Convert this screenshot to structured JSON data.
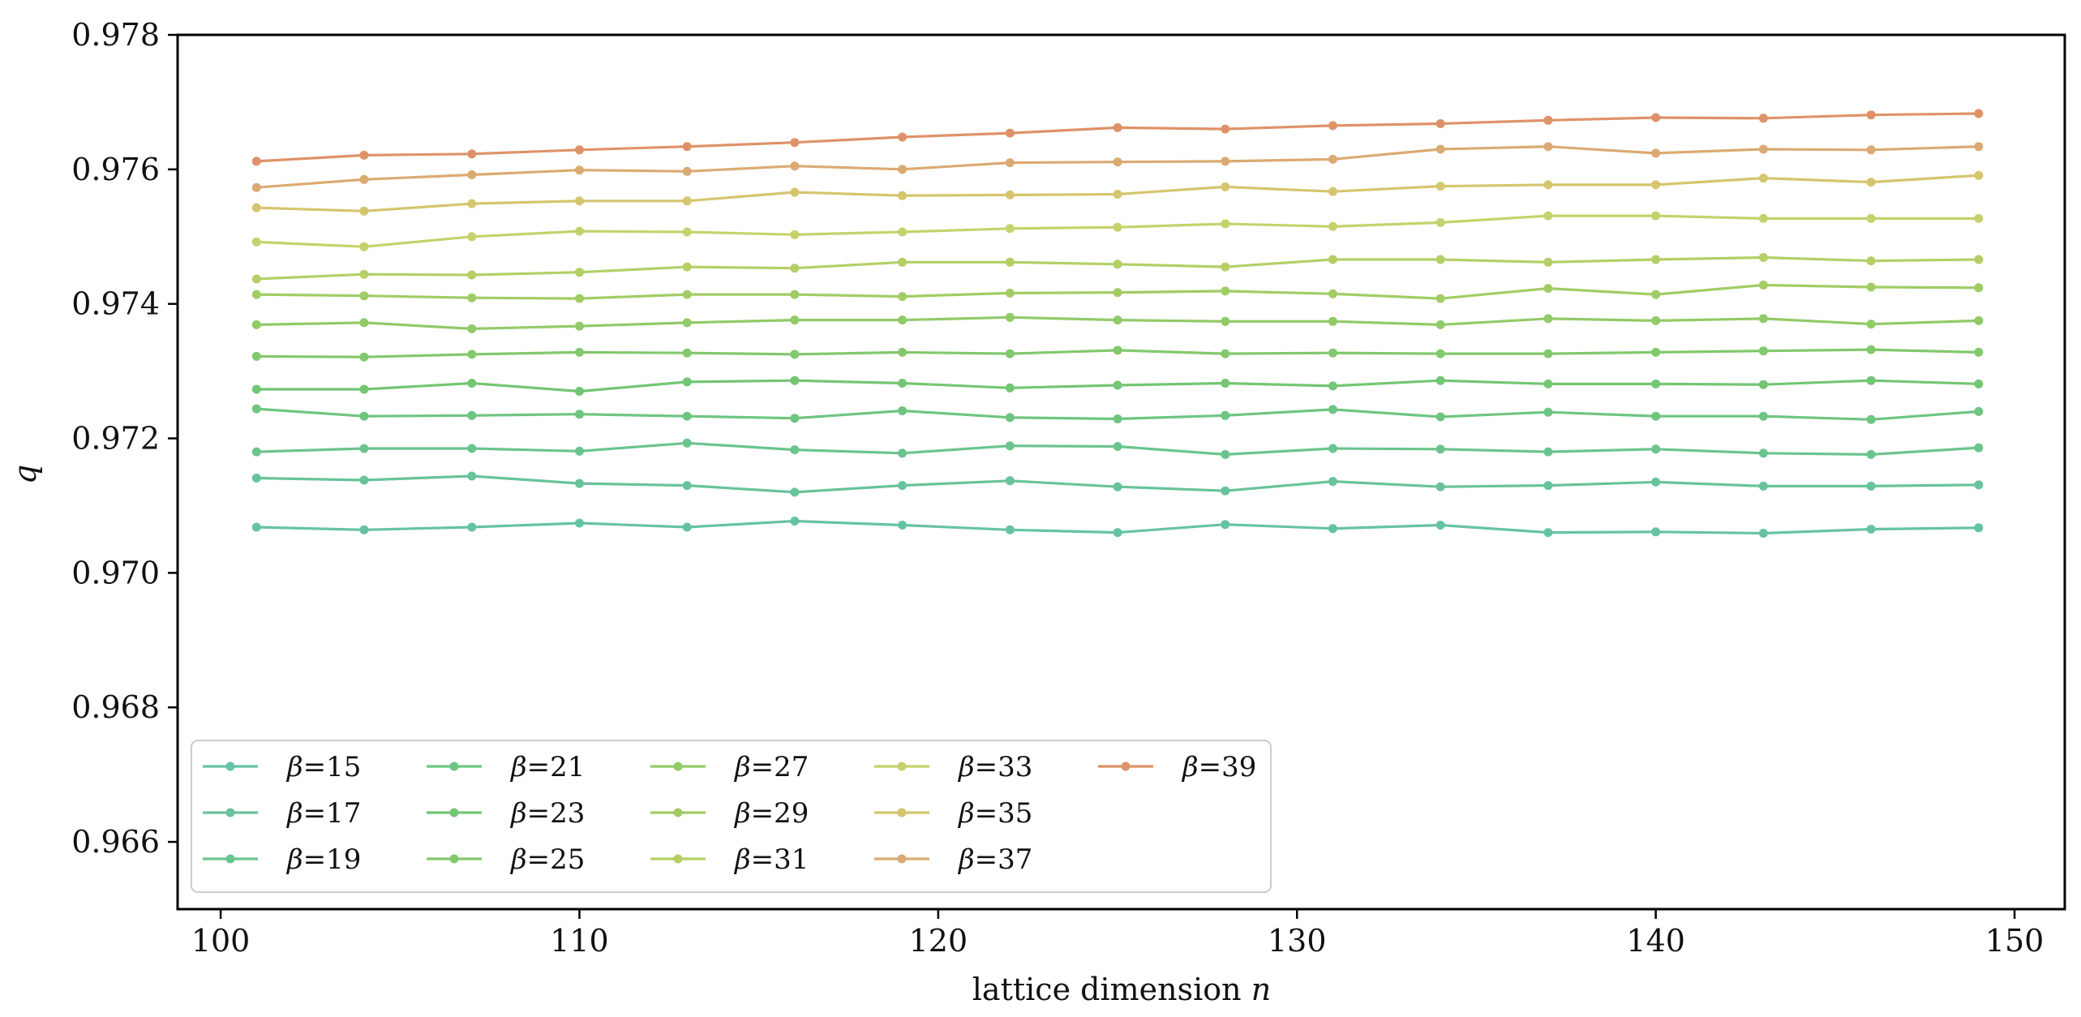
{
  "chart_data": {
    "type": "line",
    "title": "",
    "xlabel": "lattice dimension",
    "xlabel_var": "n",
    "ylabel": "q",
    "xlim": [
      98.8,
      151.4
    ],
    "ylim": [
      0.965,
      0.978
    ],
    "xticks": [
      100,
      110,
      120,
      130,
      140,
      150
    ],
    "xtick_labels": [
      "100",
      "110",
      "120",
      "130",
      "140",
      "150"
    ],
    "yticks": [
      0.966,
      0.968,
      0.97,
      0.972,
      0.974,
      0.976,
      0.978
    ],
    "ytick_labels": [
      "0.966",
      "0.968",
      "0.970",
      "0.972",
      "0.974",
      "0.976",
      "0.978"
    ],
    "grid": false,
    "legend_position": "lower-left",
    "legend_columns": 5,
    "x": [
      101,
      104,
      107,
      110,
      113,
      116,
      119,
      122,
      125,
      128,
      131,
      134,
      137,
      140,
      143,
      146,
      149
    ],
    "series": [
      {
        "name": "β=15",
        "symbol": "β",
        "value": "=15",
        "color": "#66c2a5",
        "values": [
          0.97068,
          0.97064,
          0.97068,
          0.97074,
          0.97068,
          0.97077,
          0.97071,
          0.97064,
          0.9706,
          0.97072,
          0.97066,
          0.97071,
          0.9706,
          0.97061,
          0.97059,
          0.97065,
          0.97067
        ]
      },
      {
        "name": "β=17",
        "symbol": "β",
        "value": "=17",
        "color": "#68c39a",
        "values": [
          0.97141,
          0.97138,
          0.97144,
          0.97133,
          0.9713,
          0.9712,
          0.9713,
          0.97137,
          0.97128,
          0.97122,
          0.97136,
          0.97128,
          0.9713,
          0.97135,
          0.97129,
          0.97129,
          0.97131
        ]
      },
      {
        "name": "β=19",
        "symbol": "β",
        "value": "=19",
        "color": "#6bc48e",
        "values": [
          0.9718,
          0.97185,
          0.97185,
          0.97181,
          0.97193,
          0.97183,
          0.97178,
          0.97189,
          0.97188,
          0.97176,
          0.97185,
          0.97184,
          0.9718,
          0.97184,
          0.97178,
          0.97176,
          0.97186
        ]
      },
      {
        "name": "β=21",
        "symbol": "β",
        "value": "=21",
        "color": "#6ec580",
        "values": [
          0.97244,
          0.97233,
          0.97234,
          0.97236,
          0.97233,
          0.9723,
          0.97241,
          0.97231,
          0.97229,
          0.97234,
          0.97243,
          0.97232,
          0.97239,
          0.97233,
          0.97233,
          0.97228,
          0.9724
        ]
      },
      {
        "name": "β=23",
        "symbol": "β",
        "value": "=23",
        "color": "#73c673",
        "values": [
          0.97273,
          0.97273,
          0.97282,
          0.9727,
          0.97284,
          0.97286,
          0.97282,
          0.97275,
          0.97279,
          0.97282,
          0.97278,
          0.97286,
          0.97281,
          0.97281,
          0.9728,
          0.97286,
          0.97281
        ]
      },
      {
        "name": "β=25",
        "symbol": "β",
        "value": "=25",
        "color": "#82c86c",
        "values": [
          0.97322,
          0.97321,
          0.97325,
          0.97328,
          0.97327,
          0.97325,
          0.97328,
          0.97326,
          0.97331,
          0.97326,
          0.97327,
          0.97326,
          0.97326,
          0.97328,
          0.9733,
          0.97332,
          0.97328
        ]
      },
      {
        "name": "β=27",
        "symbol": "β",
        "value": "=27",
        "color": "#91ca68",
        "values": [
          0.97369,
          0.97372,
          0.97363,
          0.97367,
          0.97372,
          0.97376,
          0.97376,
          0.9738,
          0.97376,
          0.97374,
          0.97374,
          0.97369,
          0.97378,
          0.97375,
          0.97378,
          0.9737,
          0.97375
        ]
      },
      {
        "name": "β=29",
        "symbol": "β",
        "value": "=29",
        "color": "#a1cc65",
        "values": [
          0.97414,
          0.97412,
          0.97409,
          0.97408,
          0.97414,
          0.97414,
          0.97411,
          0.97416,
          0.97417,
          0.97419,
          0.97415,
          0.97408,
          0.97423,
          0.97414,
          0.97428,
          0.97425,
          0.97424
        ]
      },
      {
        "name": "β=31",
        "symbol": "β",
        "value": "=31",
        "color": "#b3cf66",
        "values": [
          0.97437,
          0.97444,
          0.97443,
          0.97447,
          0.97455,
          0.97453,
          0.97462,
          0.97462,
          0.97459,
          0.97455,
          0.97466,
          0.97466,
          0.97462,
          0.97466,
          0.97469,
          0.97464,
          0.97466
        ]
      },
      {
        "name": "β=33",
        "symbol": "β",
        "value": "=33",
        "color": "#c5d26b",
        "values": [
          0.97492,
          0.97485,
          0.975,
          0.97508,
          0.97507,
          0.97503,
          0.97507,
          0.97512,
          0.97514,
          0.97519,
          0.97515,
          0.97521,
          0.97531,
          0.97531,
          0.97527,
          0.97527,
          0.97527
        ]
      },
      {
        "name": "β=35",
        "symbol": "β",
        "value": "=35",
        "color": "#d5c56e",
        "values": [
          0.97543,
          0.97538,
          0.97549,
          0.97553,
          0.97553,
          0.97566,
          0.97561,
          0.97562,
          0.97563,
          0.97574,
          0.97567,
          0.97575,
          0.97577,
          0.97577,
          0.97587,
          0.97581,
          0.97591
        ]
      },
      {
        "name": "β=37",
        "symbol": "β",
        "value": "=37",
        "color": "#dbaa72",
        "values": [
          0.97573,
          0.97585,
          0.97592,
          0.97599,
          0.97597,
          0.97605,
          0.976,
          0.9761,
          0.97611,
          0.97612,
          0.97615,
          0.9763,
          0.97634,
          0.97624,
          0.9763,
          0.97629,
          0.97634
        ]
      },
      {
        "name": "β=39",
        "symbol": "β",
        "value": "=39",
        "color": "#de9268",
        "values": [
          0.97612,
          0.97621,
          0.97623,
          0.97629,
          0.97634,
          0.9764,
          0.97648,
          0.97654,
          0.97662,
          0.9766,
          0.97665,
          0.97668,
          0.97673,
          0.97677,
          0.97676,
          0.97681,
          0.97683
        ]
      }
    ]
  }
}
